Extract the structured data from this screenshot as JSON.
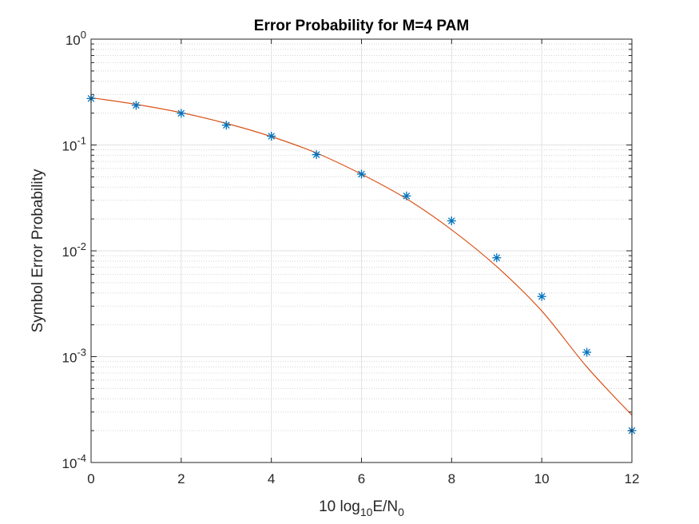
{
  "chart_data": {
    "type": "line",
    "title": "Error Probability for M=4 PAM",
    "xlabel": {
      "base": "10 log",
      "sub": "10",
      "rest": "E/N",
      "sub2": "0"
    },
    "ylabel": "Symbol Error Probability",
    "xlim": [
      0,
      12
    ],
    "ylim": [
      0.0001,
      1
    ],
    "yscale": "log",
    "grid": "on (major and minor)",
    "xticks": [
      "0",
      "2",
      "4",
      "6",
      "8",
      "10",
      "12"
    ],
    "yticks": [
      {
        "base": "10",
        "exp": "-4"
      },
      {
        "base": "10",
        "exp": "-3"
      },
      {
        "base": "10",
        "exp": "-2"
      },
      {
        "base": "10",
        "exp": "-1"
      },
      {
        "base": "10",
        "exp": "0"
      }
    ],
    "series": [
      {
        "style": "markers-asterisk",
        "color": "#0072BD",
        "x": [
          0,
          1,
          2,
          3,
          4,
          5,
          6,
          7,
          8,
          9,
          10,
          11,
          12
        ],
        "y": [
          0.275,
          0.237,
          0.199,
          0.154,
          0.121,
          0.081,
          0.053,
          0.033,
          0.0192,
          0.0086,
          0.0037,
          0.0011,
          0.0002
        ]
      },
      {
        "style": "line",
        "color": "#D95319",
        "x": [
          0,
          1,
          2,
          3,
          4,
          5,
          6,
          7,
          8,
          9,
          10,
          11,
          12
        ],
        "y": [
          0.28,
          0.242,
          0.202,
          0.16,
          0.12,
          0.084,
          0.053,
          0.031,
          0.0158,
          0.0071,
          0.0027,
          0.0008,
          0.00028
        ]
      }
    ]
  }
}
